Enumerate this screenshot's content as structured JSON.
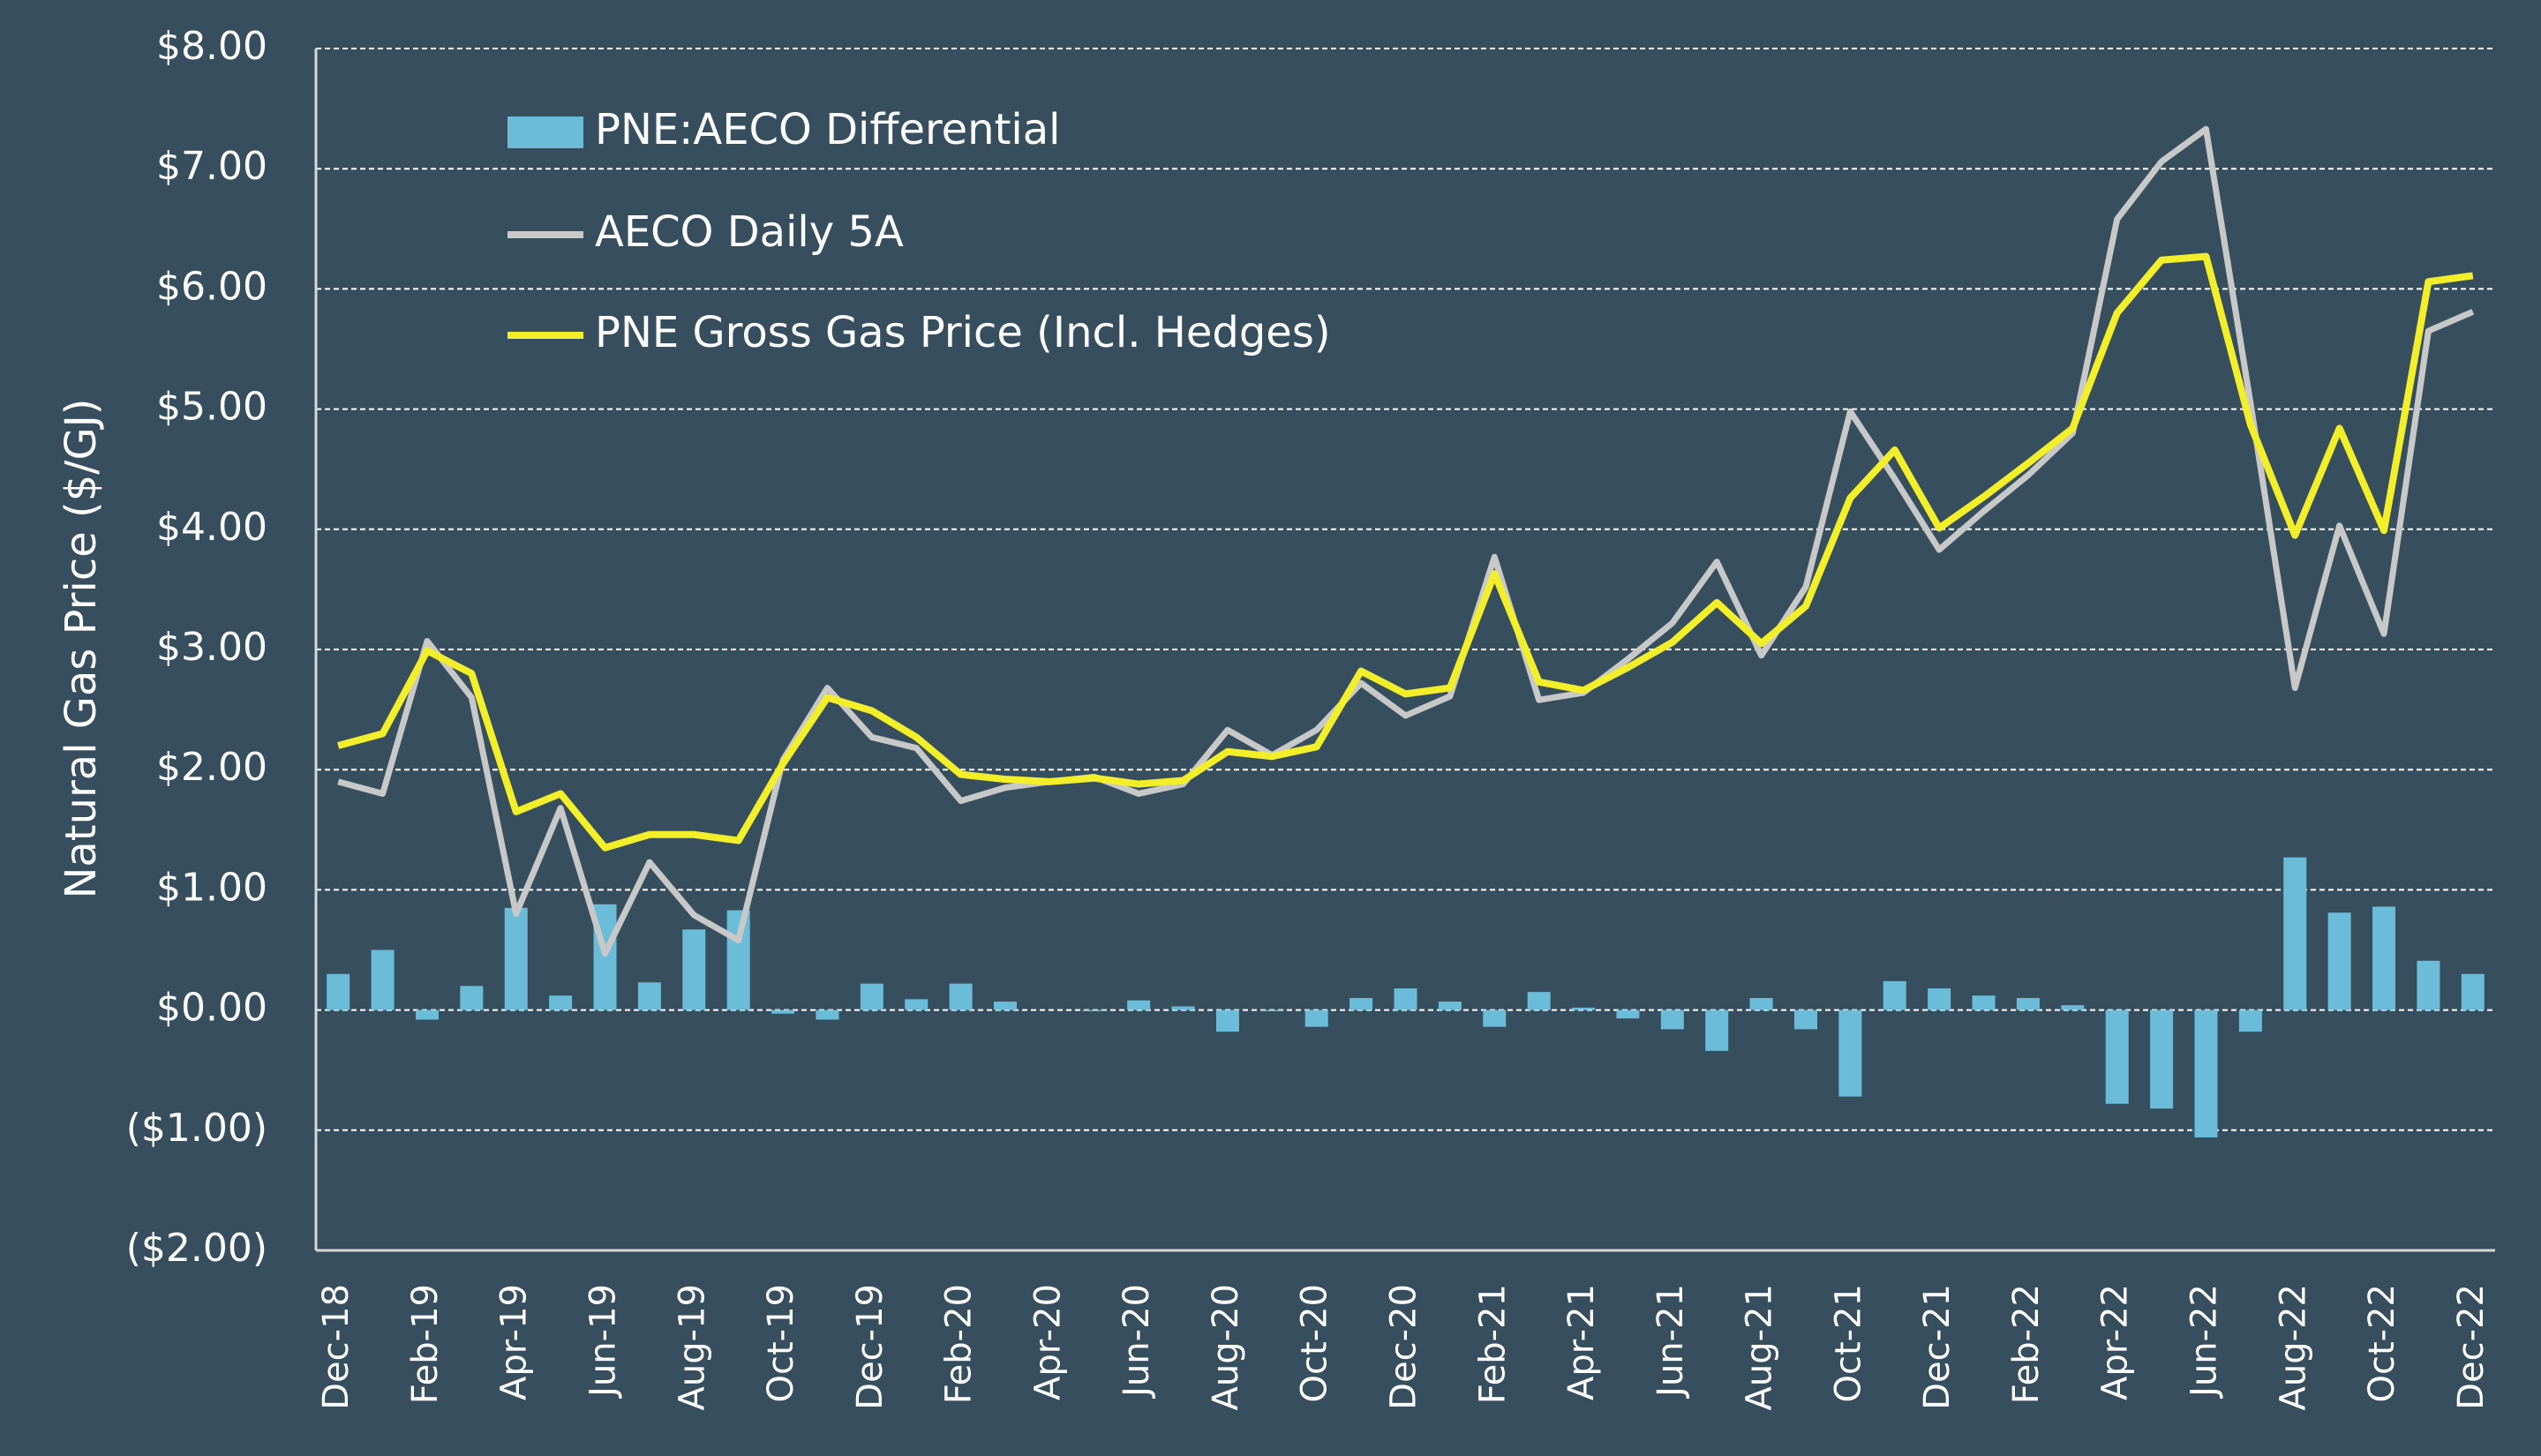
{
  "chart_data": {
    "type": "bar-line",
    "y_axis_label": "Natural Gas Price ($/GJ)",
    "categories": [
      "Dec-18",
      null,
      "Feb-19",
      null,
      "Apr-19",
      null,
      "Jun-19",
      null,
      "Aug-19",
      null,
      "Oct-19",
      null,
      "Dec-19",
      null,
      "Feb-20",
      null,
      "Apr-20",
      null,
      "Jun-20",
      null,
      "Aug-20",
      null,
      "Oct-20",
      null,
      "Dec-20",
      null,
      "Feb-21",
      null,
      "Apr-21",
      null,
      "Jun-21",
      null,
      "Aug-21",
      null,
      "Oct-21",
      null,
      "Dec-21",
      null,
      "Feb-22",
      null,
      "Apr-22",
      null,
      "Jun-22",
      null,
      "Aug-22",
      null,
      "Oct-22",
      null,
      "Dec-22"
    ],
    "series": [
      {
        "name": "PNE:AECO Differential",
        "kind": "bar",
        "color": "#6bbcd9",
        "values": [
          0.3,
          0.5,
          -0.08,
          0.2,
          0.85,
          0.12,
          0.88,
          0.23,
          0.67,
          0.83,
          -0.03,
          -0.08,
          0.22,
          0.09,
          0.22,
          0.07,
          0.0,
          -0.01,
          0.08,
          0.03,
          -0.18,
          -0.01,
          -0.14,
          0.1,
          0.18,
          0.07,
          -0.14,
          0.15,
          0.02,
          -0.07,
          -0.16,
          -0.34,
          0.1,
          -0.16,
          -0.72,
          0.24,
          0.18,
          0.12,
          0.1,
          0.04,
          -0.78,
          -0.82,
          -1.06,
          -0.18,
          1.27,
          0.81,
          0.86,
          0.41,
          0.3
        ]
      },
      {
        "name": "AECO Daily 5A",
        "kind": "line",
        "color": "#c8c8c8",
        "values": [
          1.9,
          1.8,
          3.07,
          2.6,
          0.8,
          1.68,
          0.47,
          1.23,
          0.79,
          0.58,
          2.08,
          2.68,
          2.27,
          2.18,
          1.74,
          1.85,
          1.9,
          1.94,
          1.8,
          1.88,
          2.33,
          2.12,
          2.33,
          2.72,
          2.45,
          2.61,
          3.77,
          2.58,
          2.64,
          2.92,
          3.22,
          3.73,
          2.95,
          3.52,
          4.98,
          4.42,
          3.83,
          4.15,
          4.45,
          4.8,
          6.58,
          7.06,
          7.33,
          5.05,
          2.68,
          4.03,
          3.13,
          5.65,
          5.81
        ]
      },
      {
        "name": "PNE Gross Gas Price (Incl. Hedges)",
        "kind": "line",
        "color": "#f2ef2a",
        "values": [
          2.2,
          2.3,
          2.99,
          2.8,
          1.65,
          1.8,
          1.35,
          1.46,
          1.46,
          1.41,
          2.05,
          2.6,
          2.49,
          2.27,
          1.96,
          1.92,
          1.9,
          1.93,
          1.88,
          1.91,
          2.15,
          2.11,
          2.19,
          2.82,
          2.63,
          2.68,
          3.63,
          2.73,
          2.66,
          2.85,
          3.06,
          3.39,
          3.05,
          3.36,
          4.26,
          4.66,
          4.01,
          4.27,
          4.55,
          4.84,
          5.8,
          6.24,
          6.27,
          4.87,
          3.95,
          4.84,
          3.99,
          6.06,
          6.11
        ]
      }
    ],
    "ylim": [
      -2,
      8
    ],
    "yticks": [
      {
        "value": -2,
        "label": "($2.00)"
      },
      {
        "value": -1,
        "label": "($1.00)"
      },
      {
        "value": 0,
        "label": "$0.00"
      },
      {
        "value": 1,
        "label": "$1.00"
      },
      {
        "value": 2,
        "label": "$2.00"
      },
      {
        "value": 3,
        "label": "$3.00"
      },
      {
        "value": 4,
        "label": "$4.00"
      },
      {
        "value": 5,
        "label": "$5.00"
      },
      {
        "value": 6,
        "label": "$6.00"
      },
      {
        "value": 7,
        "label": "$7.00"
      },
      {
        "value": 8,
        "label": "$8.00"
      }
    ],
    "grid": true,
    "legend": "upper left"
  }
}
